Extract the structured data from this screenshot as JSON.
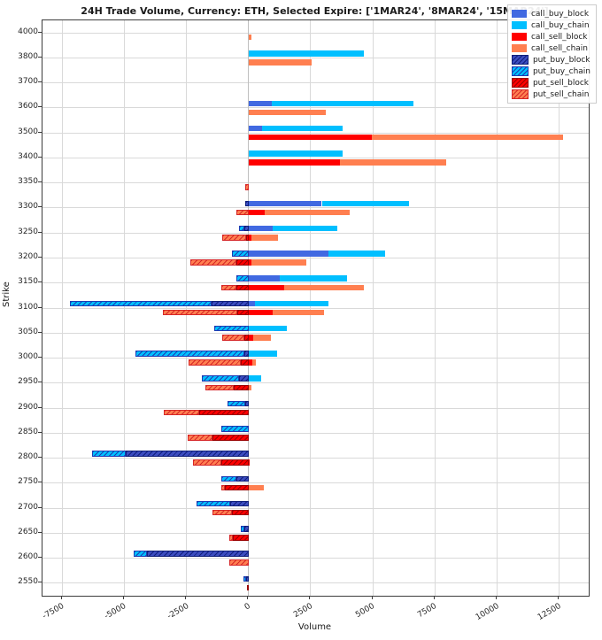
{
  "title": "24H Trade Volume, Currency: ETH, Selected Expire: ['1MAR24', '8MAR24', '15MAR24']",
  "axes": {
    "xlabel": "Volume",
    "ylabel": "Strike"
  },
  "x_axis": {
    "ticks": [
      {
        "v": -7500,
        "label": "-7500"
      },
      {
        "v": -5000,
        "label": "-5000"
      },
      {
        "v": -2500,
        "label": "-2500"
      },
      {
        "v": 0,
        "label": "0"
      },
      {
        "v": 2500,
        "label": "2500"
      },
      {
        "v": 5000,
        "label": "5000"
      },
      {
        "v": 7500,
        "label": "7500"
      },
      {
        "v": 10000,
        "label": "10000"
      },
      {
        "v": 12500,
        "label": "12500"
      }
    ]
  },
  "legend": [
    {
      "name": "call_buy_block",
      "label": "call_buy_block",
      "color": "#4169e1",
      "hatch": null
    },
    {
      "name": "call_buy_chain",
      "label": "call_buy_chain",
      "color": "#00bfff",
      "hatch": null
    },
    {
      "name": "call_sell_block",
      "label": "call_sell_block",
      "color": "#ff0000",
      "hatch": null
    },
    {
      "name": "call_sell_chain",
      "label": "call_sell_chain",
      "color": "#ff7f50",
      "hatch": null
    },
    {
      "name": "put_buy_block",
      "label": "put_buy_block",
      "color": "#3b4cc0",
      "hatch": "#101f7a"
    },
    {
      "name": "put_buy_chain",
      "label": "put_buy_chain",
      "color": "#00bfff",
      "hatch": "#1f3bb3"
    },
    {
      "name": "put_sell_block",
      "label": "put_sell_block",
      "color": "#ff0000",
      "hatch": "#990000"
    },
    {
      "name": "put_sell_chain",
      "label": "put_sell_chain",
      "color": "#ff7f50",
      "hatch": "#d62728"
    }
  ],
  "chart_data": {
    "type": "bar",
    "orientation": "horizontal",
    "stacked": true,
    "title": "24H Trade Volume, Currency: ETH, Selected Expire: ['1MAR24', '8MAR24', '15MAR24']",
    "xlabel": "Volume",
    "ylabel": "Strike",
    "xlim": [
      -8300,
      13700
    ],
    "grid": true,
    "legend_position": "upper right",
    "categories": [
      "4000",
      "3800",
      "3700",
      "3600",
      "3500",
      "3400",
      "3350",
      "3300",
      "3250",
      "3200",
      "3150",
      "3100",
      "3050",
      "3000",
      "2950",
      "2900",
      "2850",
      "2800",
      "2750",
      "2700",
      "2650",
      "2600",
      "2550"
    ],
    "series": [
      {
        "name": "call_buy_block",
        "lane": "buy",
        "side": "pos",
        "values": [
          0,
          0,
          0,
          950,
          550,
          0,
          0,
          2950,
          975,
          3200,
          1250,
          250,
          0,
          0,
          0,
          0,
          0,
          0,
          0,
          0,
          0,
          0,
          0
        ]
      },
      {
        "name": "call_buy_chain",
        "lane": "buy",
        "side": "pos",
        "values": [
          0,
          4650,
          0,
          5700,
          3250,
          3800,
          0,
          3500,
          2600,
          2300,
          2700,
          2950,
          1550,
          1150,
          500,
          0,
          0,
          0,
          0,
          0,
          0,
          0,
          0
        ]
      },
      {
        "name": "call_sell_block",
        "lane": "sell",
        "side": "pos",
        "values": [
          0,
          0,
          0,
          0,
          4950,
          3680,
          0,
          640,
          100,
          100,
          1450,
          975,
          200,
          150,
          0,
          0,
          0,
          50,
          0,
          0,
          0,
          0,
          0
        ]
      },
      {
        "name": "call_sell_chain",
        "lane": "sell",
        "side": "pos",
        "values": [
          100,
          2550,
          0,
          3100,
          7700,
          4270,
          0,
          3430,
          1100,
          2240,
          3200,
          2070,
          700,
          150,
          100,
          0,
          0,
          0,
          600,
          0,
          0,
          0,
          0
        ]
      },
      {
        "name": "put_buy_block",
        "lane": "buy",
        "side": "neg",
        "values": [
          0,
          0,
          0,
          0,
          0,
          0,
          0,
          150,
          160,
          0,
          0,
          1490,
          0,
          170,
          380,
          140,
          0,
          4960,
          500,
          750,
          180,
          4100,
          100
        ]
      },
      {
        "name": "put_buy_chain",
        "lane": "buy",
        "side": "neg",
        "values": [
          0,
          0,
          0,
          0,
          0,
          0,
          0,
          0,
          230,
          680,
          500,
          5690,
          1370,
          4400,
          1490,
          710,
          1100,
          1350,
          600,
          1360,
          150,
          540,
          100
        ]
      },
      {
        "name": "put_sell_block",
        "lane": "sell",
        "side": "neg",
        "values": [
          0,
          0,
          0,
          0,
          0,
          0,
          0,
          0,
          100,
          500,
          500,
          440,
          180,
          330,
          600,
          1990,
          1450,
          1100,
          950,
          680,
          620,
          0,
          50
        ]
      },
      {
        "name": "put_sell_chain",
        "lane": "sell",
        "side": "neg",
        "values": [
          0,
          0,
          0,
          0,
          0,
          0,
          150,
          500,
          975,
          1860,
          600,
          3015,
          890,
          2100,
          1130,
          1440,
          1010,
          1130,
          150,
          780,
          150,
          780,
          0
        ]
      }
    ]
  }
}
